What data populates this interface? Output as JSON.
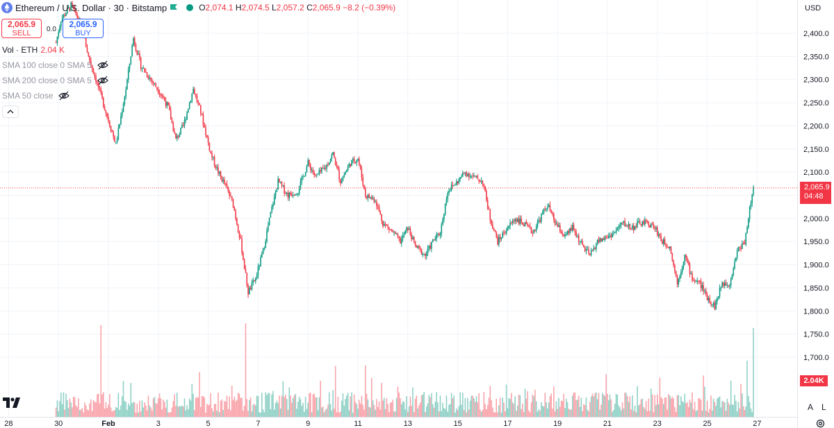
{
  "header": {
    "symbol_title": "Ethereum / U.S. Dollar · 30 · Bitstamp",
    "ohlc": {
      "o_label": "O",
      "o": "2,074.1",
      "h_label": "H",
      "h": "2,074.5",
      "l_label": "L",
      "l": "2,057.2",
      "c_label": "C",
      "c": "2,065.9",
      "change": "−8.2 (−0.39%)"
    },
    "sell": {
      "price": "2,065.9",
      "label": "SELL"
    },
    "buy": {
      "price": "2,065.9",
      "label": "BUY"
    },
    "spread": "0.0",
    "volume": {
      "label": "Vol · ETH",
      "value": "2.04 K"
    },
    "indicators": [
      "SMA 100 close 0 SMA 5",
      "SMA 200 close 0 SMA 5",
      "SMA 50 close"
    ]
  },
  "axis": {
    "currency": "USD",
    "price_badge": {
      "price": "2,065.9",
      "countdown": "04:48"
    },
    "volume_badge": "2.04K",
    "auto_label": "A",
    "log_label": "L"
  },
  "colors": {
    "up": "#089981",
    "down": "#f23645",
    "grid": "#f0f3fa",
    "axis_text": "#131722"
  },
  "chart_data": {
    "type": "candlestick",
    "interval": "30m",
    "ylim": [
      1700,
      2450
    ],
    "y_ticks": [
      "2,400.0",
      "2,350.0",
      "2,300.0",
      "2,250.0",
      "2,200.0",
      "2,150.0",
      "2,100.0",
      "2,050.0",
      "2,000.0",
      "1,950.0",
      "1,900.0",
      "1,850.0",
      "1,800.0",
      "1,750.0",
      "1,700.0"
    ],
    "y_tick_values": [
      2400,
      2350,
      2300,
      2250,
      2200,
      2150,
      2100,
      2050,
      2000,
      1950,
      1900,
      1850,
      1800,
      1750,
      1700
    ],
    "x_ticks": [
      "28",
      "30",
      "Feb",
      "3",
      "5",
      "7",
      "9",
      "11",
      "13",
      "15",
      "17",
      "19",
      "21",
      "23",
      "25",
      "27"
    ],
    "x_tick_days": [
      -4,
      -2,
      0,
      2,
      4,
      6,
      8,
      10,
      12,
      14,
      16,
      18,
      20,
      22,
      24,
      26
    ],
    "last_price": 2065.9,
    "path": [
      [
        -2.1,
        2380
      ],
      [
        -1.9,
        2430
      ],
      [
        -1.5,
        2460
      ],
      [
        -1.1,
        2420
      ],
      [
        -0.8,
        2350
      ],
      [
        -0.5,
        2300
      ],
      [
        -0.1,
        2230
      ],
      [
        0.3,
        2160
      ],
      [
        0.7,
        2280
      ],
      [
        1.0,
        2390
      ],
      [
        1.3,
        2330
      ],
      [
        1.7,
        2300
      ],
      [
        2.1,
        2270
      ],
      [
        2.4,
        2240
      ],
      [
        2.7,
        2170
      ],
      [
        3.0,
        2200
      ],
      [
        3.4,
        2280
      ],
      [
        3.7,
        2230
      ],
      [
        4.1,
        2140
      ],
      [
        4.4,
        2100
      ],
      [
        4.7,
        2070
      ],
      [
        5.0,
        2030
      ],
      [
        5.3,
        1950
      ],
      [
        5.6,
        1840
      ],
      [
        5.9,
        1870
      ],
      [
        6.2,
        1930
      ],
      [
        6.5,
        2010
      ],
      [
        6.8,
        2080
      ],
      [
        7.2,
        2050
      ],
      [
        7.6,
        2060
      ],
      [
        8.0,
        2120
      ],
      [
        8.3,
        2090
      ],
      [
        8.7,
        2110
      ],
      [
        9.0,
        2140
      ],
      [
        9.3,
        2080
      ],
      [
        9.7,
        2120
      ],
      [
        10.0,
        2130
      ],
      [
        10.3,
        2050
      ],
      [
        10.7,
        2040
      ],
      [
        11.0,
        1990
      ],
      [
        11.4,
        1970
      ],
      [
        11.7,
        1950
      ],
      [
        12.0,
        1980
      ],
      [
        12.3,
        1940
      ],
      [
        12.7,
        1920
      ],
      [
        13.0,
        1950
      ],
      [
        13.3,
        1970
      ],
      [
        13.6,
        2060
      ],
      [
        14.0,
        2080
      ],
      [
        14.3,
        2100
      ],
      [
        14.6,
        2090
      ],
      [
        15.0,
        2080
      ],
      [
        15.3,
        2000
      ],
      [
        15.6,
        1950
      ],
      [
        16.0,
        1980
      ],
      [
        16.3,
        2000
      ],
      [
        16.6,
        1990
      ],
      [
        17.0,
        1970
      ],
      [
        17.3,
        2000
      ],
      [
        17.6,
        2030
      ],
      [
        17.9,
        1990
      ],
      [
        18.3,
        1960
      ],
      [
        18.6,
        1980
      ],
      [
        19.0,
        1940
      ],
      [
        19.3,
        1920
      ],
      [
        19.6,
        1950
      ],
      [
        20.0,
        1960
      ],
      [
        20.3,
        1970
      ],
      [
        20.6,
        1990
      ],
      [
        21.0,
        1980
      ],
      [
        21.3,
        1990
      ],
      [
        21.6,
        1990
      ],
      [
        21.9,
        1980
      ],
      [
        22.2,
        1950
      ],
      [
        22.5,
        1940
      ],
      [
        22.8,
        1860
      ],
      [
        23.1,
        1920
      ],
      [
        23.4,
        1870
      ],
      [
        23.7,
        1860
      ],
      [
        24.0,
        1830
      ],
      [
        24.3,
        1810
      ],
      [
        24.6,
        1860
      ],
      [
        24.9,
        1860
      ],
      [
        25.2,
        1930
      ],
      [
        25.5,
        1950
      ],
      [
        25.7,
        2020
      ],
      [
        25.85,
        2066
      ]
    ],
    "volume_spikes": [
      [
        -0.3,
        0.98
      ],
      [
        5.5,
        1.0
      ],
      [
        10.3,
        0.55
      ],
      [
        22.1,
        0.42
      ],
      [
        25.6,
        0.6
      ],
      [
        25.85,
        0.95
      ]
    ]
  }
}
